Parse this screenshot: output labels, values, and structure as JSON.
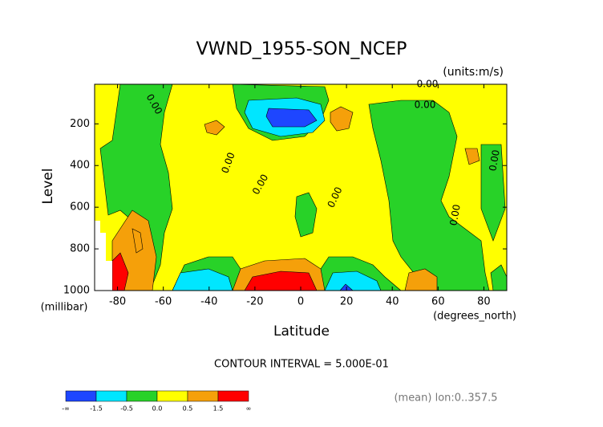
{
  "chart_data": {
    "type": "contour",
    "title": "VWND_1955-SON_NCEP",
    "units_label": "(units:m/s)",
    "y_label": "Level",
    "y_unit_label": "(millibar)",
    "x_label": "Latitude",
    "x_unit_label": "(degrees_north)",
    "contour_interval": "CONTOUR INTERVAL = 5.000E-01",
    "footnote": "(mean) lon:0..357.5",
    "contour_labels": [
      "0.00",
      "0.00",
      "0.00",
      "0.00",
      "0.00",
      "0.00",
      "0.00",
      "0.00"
    ],
    "xlim": [
      -90,
      90
    ],
    "xticks": [
      -80,
      -60,
      -40,
      -20,
      0,
      20,
      40,
      60,
      80
    ],
    "ylim": [
      1000,
      10
    ],
    "yticks": [
      200,
      400,
      600,
      800,
      1000
    ],
    "colorbar": {
      "colors": [
        "#1e46ff",
        "#00e6ff",
        "#28d228",
        "#ffff00",
        "#f5a00a",
        "#ff0000"
      ],
      "labels": [
        "-∞",
        -1.5,
        -0.5,
        {
          "value": 0,
          "label": "0.0"
        },
        0.5,
        1.5,
        "∞"
      ]
    }
  }
}
